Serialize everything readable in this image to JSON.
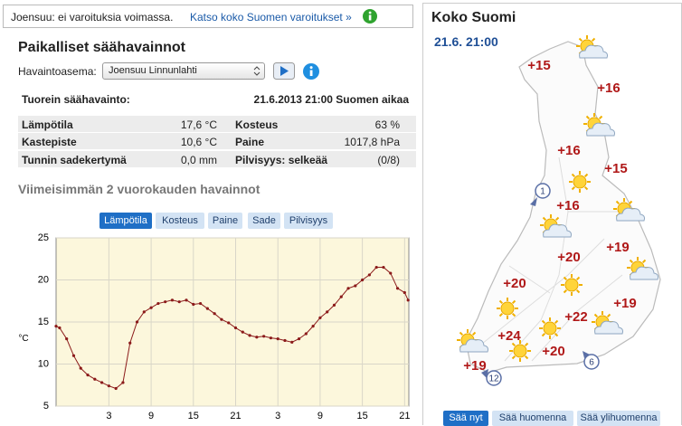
{
  "warning": {
    "text": "Joensuu: ei varoituksia voimassa.",
    "link": "Katso koko Suomen varoitukset »"
  },
  "local": {
    "title": "Paikalliset säähavainnot",
    "station_label": "Havaintoasema:",
    "station": "Joensuu Linnunlahti",
    "latest_label": "Tuorein säähavainto:",
    "latest_time": "21.6.2013 21:00 Suomen aikaa",
    "table": {
      "rows": [
        [
          "Lämpötila",
          "17,6 °C",
          "Kosteus",
          "63 %"
        ],
        [
          "Kastepiste",
          "10,6 °C",
          "Paine",
          "1017,8 hPa"
        ],
        [
          "Tunnin sadekertymä",
          "0,0 mm",
          "Pilvisyys: selkeää",
          "(0/8)"
        ]
      ]
    }
  },
  "history": {
    "title": "Viimeisimmän 2 vuorokauden havainnot",
    "tabs": [
      "Lämpötila",
      "Kosteus",
      "Paine",
      "Sade",
      "Pilvisyys"
    ],
    "active_tab": 0
  },
  "chart_data": {
    "type": "line",
    "ylabel": "°C",
    "color": "#8b1a1a",
    "x": [
      -7.5,
      -7,
      -6,
      -5,
      -4,
      -3,
      -2,
      -1,
      0,
      1,
      2,
      3,
      4,
      5,
      6,
      7,
      8,
      9,
      10,
      11,
      12,
      13,
      14,
      15,
      16,
      17,
      18,
      19,
      20,
      21,
      22,
      23,
      24,
      25,
      26,
      27,
      28,
      29,
      30,
      31,
      32,
      33,
      34,
      35,
      36,
      37,
      38,
      39,
      40,
      41,
      42,
      42.5
    ],
    "values": [
      14.5,
      14.3,
      13,
      11,
      9.5,
      8.7,
      8.2,
      7.8,
      7.4,
      7.1,
      7.8,
      12.5,
      15,
      16.2,
      16.7,
      17.2,
      17.4,
      17.6,
      17.4,
      17.6,
      17.1,
      17.2,
      16.6,
      16,
      15.3,
      14.9,
      14.3,
      13.8,
      13.4,
      13.2,
      13.3,
      13.1,
      13,
      12.8,
      12.6,
      13,
      13.6,
      14.5,
      15.5,
      16.2,
      17,
      18,
      19,
      19.3,
      20,
      20.6,
      21.5,
      21.5,
      20.8,
      19,
      18.5,
      17.6
    ],
    "xlim": [
      -7.5,
      42.6
    ],
    "ylim": [
      5,
      25
    ],
    "yticks": [
      5,
      10,
      15,
      20,
      25
    ],
    "xticks": [
      {
        "value": 0,
        "label": "3"
      },
      {
        "value": 6,
        "label": "9"
      },
      {
        "value": 12,
        "label": "15"
      },
      {
        "value": 18,
        "label": "21"
      },
      {
        "value": 24,
        "label": "3"
      },
      {
        "value": 30,
        "label": "9"
      },
      {
        "value": 36,
        "label": "15"
      },
      {
        "value": 42,
        "label": "21"
      }
    ],
    "grid": true,
    "background": "#fcf7dc"
  },
  "map": {
    "title": "Koko Suomi",
    "time": "21.6. 21:00",
    "temperatures": [
      "+15",
      "+16",
      "+16",
      "+15",
      "+16",
      "+19",
      "+20",
      "+20",
      "+19",
      "+22",
      "+24",
      "+20",
      "+19"
    ],
    "wind": [
      "1",
      "12",
      "6"
    ],
    "buttons": [
      "Sää nyt",
      "Sää huomenna",
      "Sää ylihuomenna"
    ],
    "active_button": 0
  }
}
